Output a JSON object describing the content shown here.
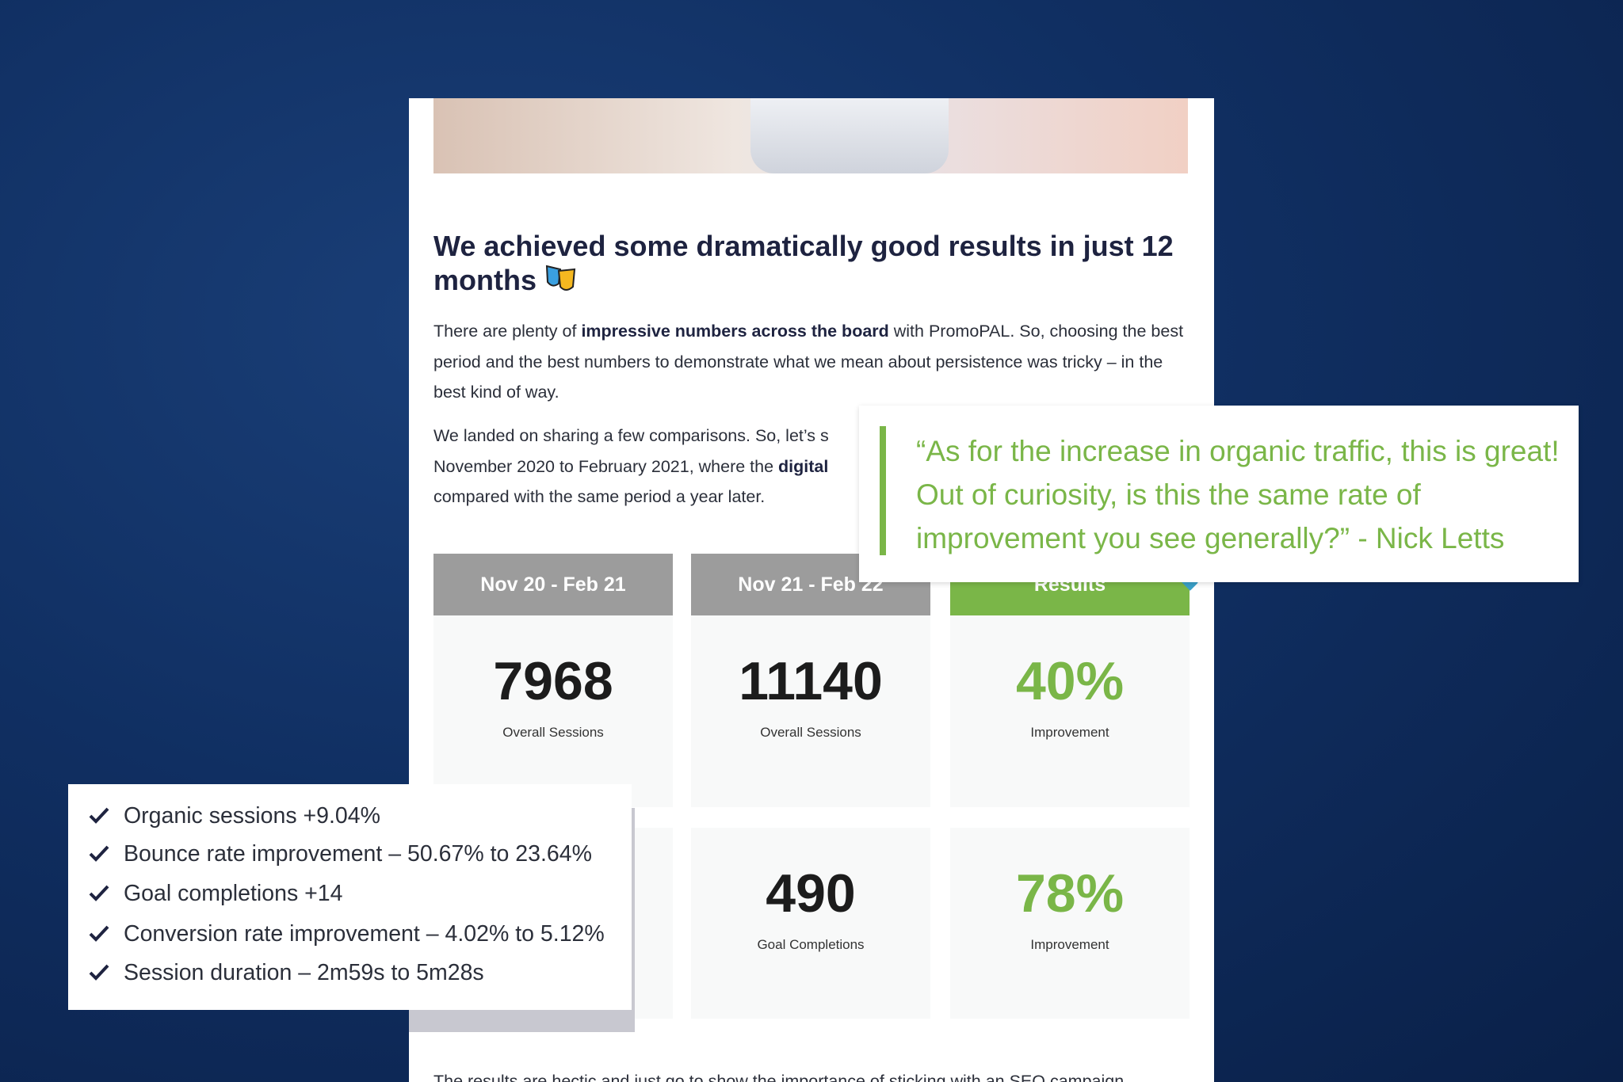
{
  "article": {
    "heading": "We achieved some dramatically good results in just 12 months",
    "paragraph_1": [
      {
        "text": "There are plenty of ",
        "bold": false
      },
      {
        "text": "impressive numbers across the board",
        "bold": true
      },
      {
        "text": " with PromoPAL. So, choosing the best period and the best numbers to demonstrate what we mean about persistence was tricky – in the best kind of way.",
        "bold": false
      }
    ],
    "paragraph_2_lines": [
      [
        {
          "text": "We landed on sharing a few comparisons. So, let’s s",
          "bold": false
        }
      ],
      [
        {
          "text": "November 2020 to February 2021, where the ",
          "bold": false
        },
        {
          "text": "digital",
          "bold": true
        }
      ],
      [
        {
          "text": "compared with the same period a year later.",
          "bold": false
        }
      ]
    ],
    "stats_headers": [
      "Nov 20 - Feb 21",
      "Nov 21 - Feb 22",
      "Results"
    ],
    "stats_rows": [
      [
        {
          "value": "7968",
          "label": "Overall Sessions"
        },
        {
          "value": "11140",
          "label": "Overall Sessions"
        },
        {
          "value": "40%",
          "label": "Improvement"
        }
      ],
      [
        null,
        {
          "value": "490",
          "label": "Goal Completions"
        },
        {
          "value": "78%",
          "label": "Improvement"
        }
      ]
    ],
    "footer_text": "The results are hectic and just go to show the importance of sticking with an SEO campaign"
  },
  "quote": "“As for the increase in organic traffic, this is great! Out of curiosity, is this the same rate of improvement you see generally?” - Nick Letts",
  "checklist": [
    "Organic sessions +9.04%",
    "Bounce rate improvement – 50.67% to 23.64%",
    "Goal completions +14",
    "Conversion rate improvement – 4.02% to 5.12%",
    "Session duration – 2m59s to 5m28s"
  ]
}
